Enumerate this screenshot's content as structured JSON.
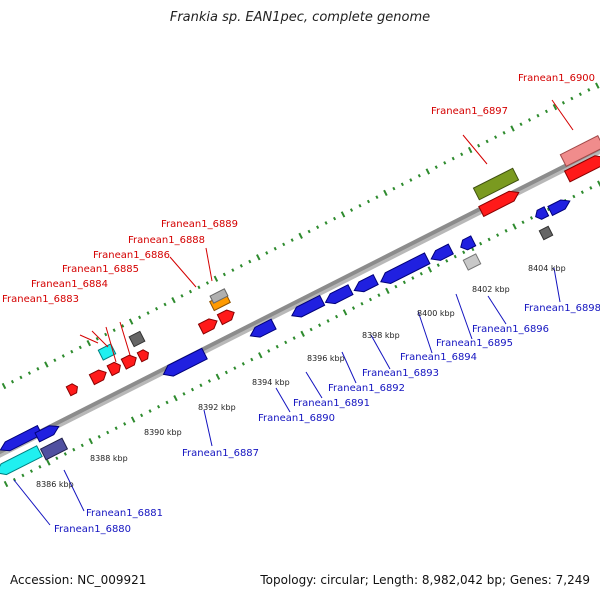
{
  "title": "Frankia sp. EAN1pec, complete genome",
  "footer": {
    "accession": "Accession: NC_009921",
    "summary": "Topology: circular; Length: 8,982,042 bp; Genes: 7,249"
  },
  "colors": {
    "forward_gene": "#ff0000",
    "reverse_gene": "#0000ee",
    "forward_label": "#d40000",
    "reverse_label": "#1414c0",
    "tick": "#2e8b2e",
    "backbone": "#8c8c8c"
  },
  "scale_labels": [
    "8386 kbp",
    "8388 kbp",
    "8390 kbp",
    "8392 kbp",
    "8394 kbp",
    "8396 kbp",
    "8398 kbp",
    "8400 kbp",
    "8402 kbp",
    "8404 kbp"
  ],
  "forward_gene_labels": [
    "Franean1_6883",
    "Franean1_6884",
    "Franean1_6885",
    "Franean1_6886",
    "Franean1_6888",
    "Franean1_6889",
    "Franean1_6897",
    "Franean1_6900"
  ],
  "reverse_gene_labels": [
    "Franean1_6880",
    "Franean1_6881",
    "Franean1_6887",
    "Franean1_6890",
    "Franean1_6891",
    "Franean1_6892",
    "Franean1_6893",
    "Franean1_6894",
    "Franean1_6895",
    "Franean1_6896",
    "Franean1_6898"
  ]
}
